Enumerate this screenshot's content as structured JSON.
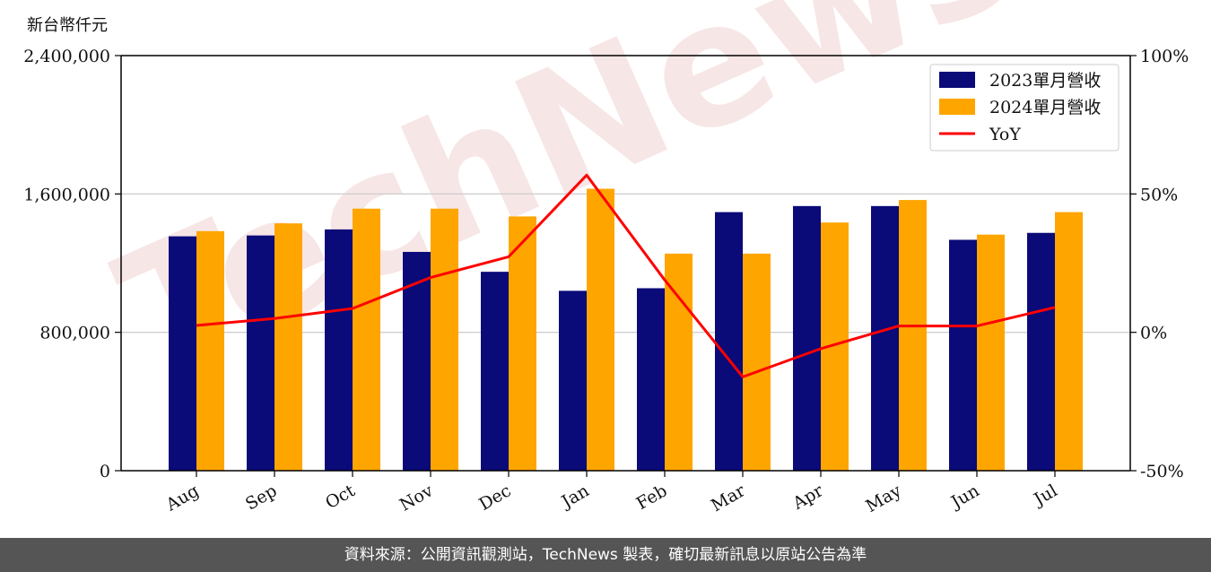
{
  "chart_data": {
    "type": "bar+line",
    "unit_label": "新台幣仟元",
    "categories": [
      "Aug",
      "Sep",
      "Oct",
      "Nov",
      "Dec",
      "Jan",
      "Feb",
      "Mar",
      "Apr",
      "May",
      "Jun",
      "Jul"
    ],
    "series": [
      {
        "name": "2023單月營收",
        "type": "bar",
        "axis": "left",
        "color": "#0a0a78",
        "values": [
          1355000,
          1360000,
          1395000,
          1265000,
          1150000,
          1040000,
          1055000,
          1495000,
          1530000,
          1530000,
          1335000,
          1375000
        ]
      },
      {
        "name": "2024單月營收",
        "type": "bar",
        "axis": "left",
        "color": "#ffa500",
        "values": [
          1385000,
          1430000,
          1515000,
          1515000,
          1470000,
          1630000,
          1255000,
          1255000,
          1435000,
          1565000,
          1365000,
          1495000
        ]
      },
      {
        "name": "YoY",
        "type": "line",
        "axis": "right",
        "color": "#ff0000",
        "values": [
          2.5,
          5.0,
          8.6,
          19.8,
          27.3,
          56.8,
          18.9,
          -16.1,
          -5.9,
          2.3,
          2.3,
          9.0
        ]
      }
    ],
    "y_left": {
      "min": 0,
      "max": 2400000,
      "ticks": [
        0,
        800000,
        1600000,
        2400000
      ],
      "tick_labels": [
        "0",
        "800,000",
        "1,600,000",
        "2,400,000"
      ]
    },
    "y_right": {
      "min": -50,
      "max": 100,
      "ticks": [
        -50,
        0,
        50,
        100
      ],
      "tick_labels": [
        "-50%",
        "0%",
        "50%",
        "100%"
      ]
    },
    "grid": "horizontal",
    "legend_position": "top-right",
    "watermark": "TechNews"
  },
  "footer": {
    "text": "資料來源：公開資訊觀測站，TechNews 製表，確切最新訊息以原站公告為準"
  }
}
